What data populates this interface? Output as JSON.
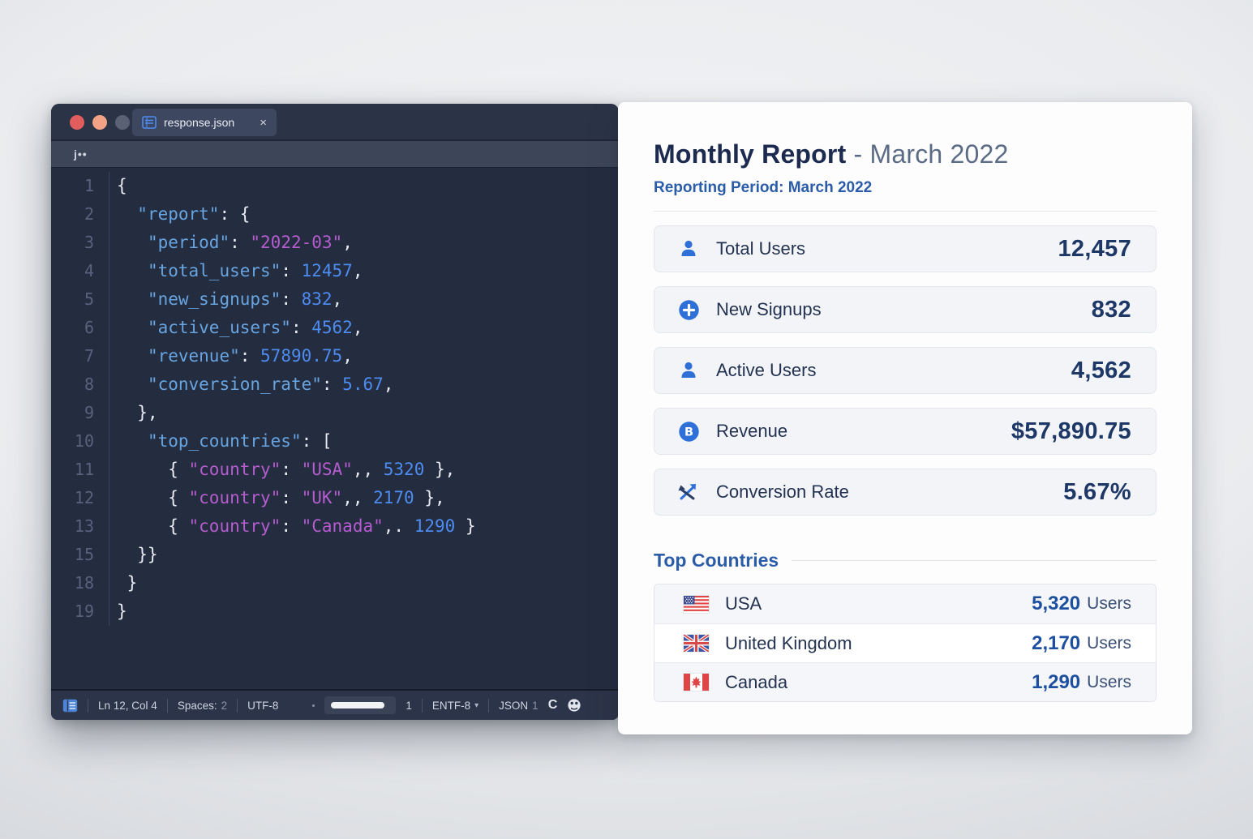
{
  "editor": {
    "window_controls": [
      "close",
      "minimize",
      "maximize"
    ],
    "tab": {
      "filename": "response.json",
      "close_glyph": "×"
    },
    "breadcrumb": "j••",
    "lines": [
      {
        "n": "1",
        "t": [
          {
            "c": "p",
            "x": "{"
          }
        ]
      },
      {
        "n": "2",
        "t": [
          {
            "c": "p",
            "x": "  "
          },
          {
            "c": "k",
            "x": "\"report\""
          },
          {
            "c": "p",
            "x": ": {"
          }
        ]
      },
      {
        "n": "3",
        "t": [
          {
            "c": "p",
            "x": "   "
          },
          {
            "c": "k",
            "x": "\"period\""
          },
          {
            "c": "p",
            "x": ": "
          },
          {
            "c": "m",
            "x": "\"2022-03\""
          },
          {
            "c": "p",
            "x": ","
          }
        ]
      },
      {
        "n": "4",
        "t": [
          {
            "c": "p",
            "x": "   "
          },
          {
            "c": "k",
            "x": "\"total_users\""
          },
          {
            "c": "p",
            "x": ": "
          },
          {
            "c": "n",
            "x": "12457"
          },
          {
            "c": "p",
            "x": ","
          }
        ]
      },
      {
        "n": "5",
        "t": [
          {
            "c": "p",
            "x": "   "
          },
          {
            "c": "k",
            "x": "\"new_signups\""
          },
          {
            "c": "p",
            "x": ": "
          },
          {
            "c": "n",
            "x": "832"
          },
          {
            "c": "p",
            "x": ","
          }
        ]
      },
      {
        "n": "6",
        "t": [
          {
            "c": "p",
            "x": "   "
          },
          {
            "c": "k",
            "x": "\"active_users\""
          },
          {
            "c": "p",
            "x": ": "
          },
          {
            "c": "n",
            "x": "4562"
          },
          {
            "c": "p",
            "x": ","
          }
        ]
      },
      {
        "n": "7",
        "t": [
          {
            "c": "p",
            "x": "   "
          },
          {
            "c": "k",
            "x": "\"revenue\""
          },
          {
            "c": "p",
            "x": ": "
          },
          {
            "c": "n",
            "x": "57890.75"
          },
          {
            "c": "p",
            "x": ","
          }
        ]
      },
      {
        "n": "8",
        "t": [
          {
            "c": "p",
            "x": "   "
          },
          {
            "c": "k",
            "x": "\"conversion_rate\""
          },
          {
            "c": "p",
            "x": ": "
          },
          {
            "c": "n",
            "x": "5.67"
          },
          {
            "c": "p",
            "x": ","
          }
        ]
      },
      {
        "n": "9",
        "t": [
          {
            "c": "p",
            "x": "  },"
          }
        ]
      },
      {
        "n": "10",
        "t": [
          {
            "c": "p",
            "x": "   "
          },
          {
            "c": "k",
            "x": "\"top_countries\""
          },
          {
            "c": "p",
            "x": ": ["
          }
        ]
      },
      {
        "n": "11",
        "t": [
          {
            "c": "p",
            "x": "     { "
          },
          {
            "c": "m",
            "x": "\"country\""
          },
          {
            "c": "p",
            "x": ": "
          },
          {
            "c": "m",
            "x": "\"USA\""
          },
          {
            "c": "p",
            "x": ",, "
          },
          {
            "c": "n",
            "x": "5320"
          },
          {
            "c": "p",
            "x": " },"
          }
        ]
      },
      {
        "n": "12",
        "t": [
          {
            "c": "p",
            "x": "     { "
          },
          {
            "c": "m",
            "x": "\"country\""
          },
          {
            "c": "p",
            "x": ": "
          },
          {
            "c": "m",
            "x": "\"UK\""
          },
          {
            "c": "p",
            "x": ",, "
          },
          {
            "c": "n",
            "x": "2170"
          },
          {
            "c": "p",
            "x": " },"
          }
        ]
      },
      {
        "n": "13",
        "t": [
          {
            "c": "p",
            "x": "     { "
          },
          {
            "c": "m",
            "x": "\"country\""
          },
          {
            "c": "p",
            "x": ": "
          },
          {
            "c": "m",
            "x": "\"Canada\""
          },
          {
            "c": "p",
            "x": ",. "
          },
          {
            "c": "n",
            "x": "1290"
          },
          {
            "c": "p",
            "x": " }"
          }
        ]
      },
      {
        "n": "15",
        "t": [
          {
            "c": "p",
            "x": "  }}"
          }
        ]
      },
      {
        "n": "18",
        "t": [
          {
            "c": "p",
            "x": " }"
          }
        ]
      },
      {
        "n": "19",
        "t": [
          {
            "c": "p",
            "x": "}"
          }
        ]
      }
    ],
    "status": {
      "cursor": "Ln 12, Col 4",
      "spaces_label": "Spaces:",
      "spaces_value": "2",
      "encoding": "UTF-8",
      "slider_value": "1",
      "feed_encoding": "ENTF-8",
      "language": "JSON",
      "language_count": "1",
      "refresh_glyph": "C"
    }
  },
  "report": {
    "title": "Monthly Report",
    "title_separator": "-",
    "title_subtitle": "March 2022",
    "period_line": "Reporting Period: March 2022",
    "metrics": [
      {
        "label": "Total Users",
        "value": "12,457",
        "icon": "user-icon"
      },
      {
        "label": "New Signups",
        "value": "832",
        "icon": "plus-circle-icon"
      },
      {
        "label": "Active Users",
        "value": "4,562",
        "icon": "user-icon"
      },
      {
        "label": "Revenue",
        "value": "$57,890.75",
        "icon": "currency-circle-icon"
      },
      {
        "label": "Conversion Rate",
        "value": "5.67%",
        "icon": "trend-arrows-icon"
      }
    ],
    "top_countries": {
      "heading": "Top Countries",
      "unit": "Users",
      "rows": [
        {
          "country": "USA",
          "value": "5,320",
          "flag": "usa-flag"
        },
        {
          "country": "United Kingdom",
          "value": "2,170",
          "flag": "uk-flag"
        },
        {
          "country": "Canada",
          "value": "1,290",
          "flag": "canada-flag"
        }
      ]
    }
  },
  "colors": {
    "accent_blue": "#2e6fd8",
    "navy_text": "#1d3766",
    "heading_blue": "#2a5ca8",
    "country_value_blue": "#1d4fa0",
    "code_key_blue": "#68a5e0",
    "code_number_blue": "#4d8cf0",
    "code_string_magenta": "#b55ccf",
    "editor_background": "#242c40",
    "traffic_red": "#e25d5d",
    "traffic_salmon": "#f2a285",
    "traffic_gray": "#596173"
  }
}
